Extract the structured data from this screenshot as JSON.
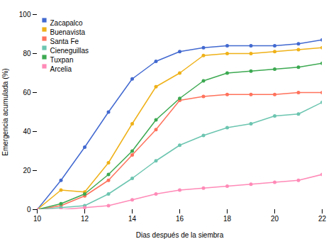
{
  "chart_data": {
    "type": "line",
    "x": [
      10,
      11,
      12,
      13,
      14,
      15,
      16,
      17,
      18,
      19,
      20,
      21,
      22
    ],
    "series": [
      {
        "name": "Zacapalco",
        "values": [
          0,
          15,
          32,
          50,
          67,
          76,
          81,
          83,
          84,
          84,
          84,
          85,
          87
        ]
      },
      {
        "name": "Buenavista",
        "values": [
          0,
          10,
          9,
          24,
          44,
          63,
          70,
          79,
          80,
          80,
          81,
          82,
          83
        ]
      },
      {
        "name": "Santa Fe",
        "values": [
          0,
          2,
          7,
          15,
          28,
          41,
          56,
          58,
          59,
          59,
          59,
          60,
          60
        ]
      },
      {
        "name": "Cieneguillas",
        "values": [
          0,
          1,
          2,
          8,
          16,
          25,
          33,
          38,
          42,
          44,
          48,
          49,
          55
        ]
      },
      {
        "name": "Tuxpan",
        "values": [
          0,
          3,
          8,
          18,
          30,
          46,
          57,
          66,
          70,
          71,
          72,
          73,
          75
        ]
      },
      {
        "name": "Arcelia",
        "values": [
          0,
          0,
          1,
          2,
          5,
          8,
          10,
          11,
          12,
          13,
          14,
          15,
          18
        ]
      }
    ],
    "x_label": "Dias después de la siembra",
    "y_label": "Emergencia acumulada (%)",
    "xlim": [
      10,
      22
    ],
    "ylim": [
      0,
      100
    ],
    "xticks": [
      10,
      12,
      14,
      16,
      18,
      20,
      22
    ],
    "yticks": [
      0,
      20,
      40,
      60,
      80,
      100
    ],
    "legend": "upper left",
    "grid": false
  }
}
